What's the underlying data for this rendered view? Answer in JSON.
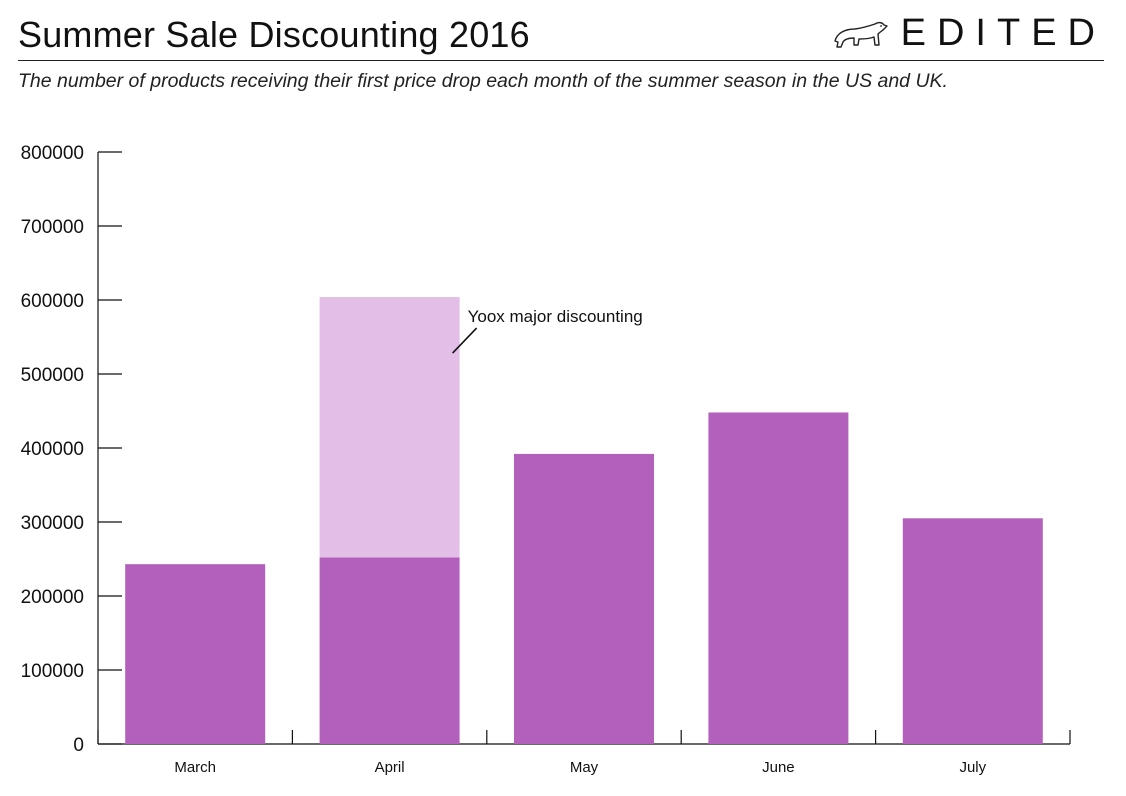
{
  "header": {
    "title": "Summer Sale Discounting 2016",
    "subtitle": "The number of products receiving their first price drop each month of the summer season in the US and UK.",
    "logo_text": "EDITED",
    "logo_icon": "polar-bear-icon"
  },
  "colors": {
    "base": "#b360bd",
    "yoox": "#e3bfe8",
    "axis": "#111111"
  },
  "chart_data": {
    "type": "bar",
    "stacked": true,
    "title": "Summer Sale Discounting 2016",
    "xlabel": "",
    "ylabel": "",
    "ylim": [
      0,
      800000
    ],
    "yticks": [
      "0",
      "100000",
      "200000",
      "300000",
      "400000",
      "500000",
      "600000",
      "700000",
      "800000"
    ],
    "categories": [
      "March",
      "April",
      "May",
      "June",
      "July"
    ],
    "series": [
      {
        "values": [
          243000,
          252000,
          392000,
          448000,
          305000
        ]
      },
      {
        "values": [
          0,
          352000,
          0,
          0,
          0
        ]
      }
    ],
    "annotations": [
      {
        "text": "Yoox major discounting",
        "category": "April"
      }
    ],
    "grid": false
  }
}
